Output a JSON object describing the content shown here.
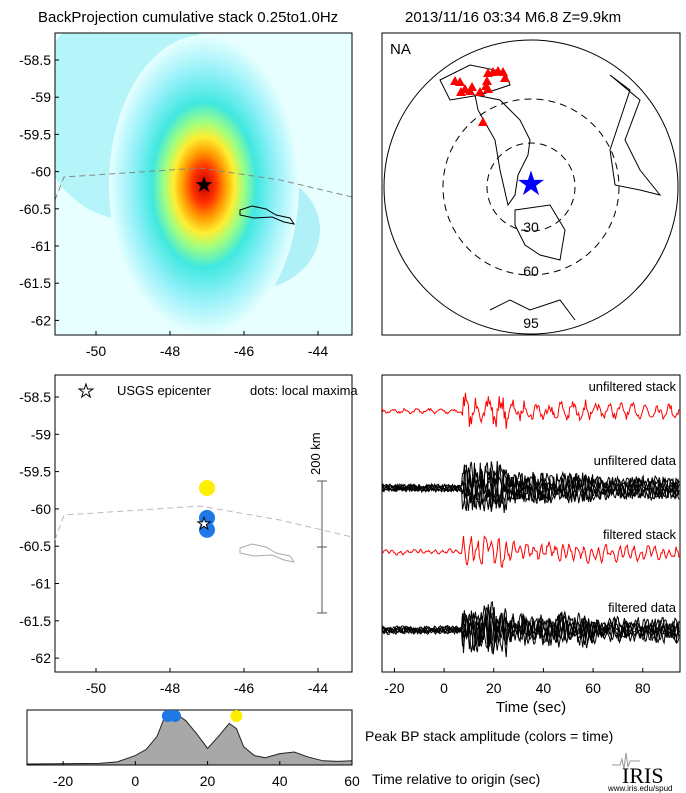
{
  "header": {
    "title": "BackProjection cumulative stack 0.25to1.0Hz",
    "event": "2013/11/16 03:34  M6.8  Z=9.9km"
  },
  "colors": {
    "stack": "#ff0000",
    "data": "#000000",
    "epicenter_map": "#0000ff",
    "stations": "#ff0000",
    "early": "#1e78e6",
    "late": "#ffee00",
    "area": "#a8a8a8"
  },
  "chart_data": [
    {
      "type": "heatmap",
      "name": "backprojection-map",
      "xticks": [
        "-50",
        "-48",
        "-46",
        "-44"
      ],
      "yticks": [
        "-58.5",
        "-59",
        "-59.5",
        "-60",
        "-60.5",
        "-61",
        "-61.5",
        "-62"
      ],
      "xlim": [
        -51.5,
        -43
      ],
      "ylim": [
        -62.2,
        -58.2
      ],
      "peak": {
        "lon": -47.0,
        "lat": -60.2
      },
      "epicenter": {
        "lon": -47.0,
        "lat": -60.2
      }
    },
    {
      "type": "map",
      "name": "station-map",
      "label": "NA",
      "rings": [
        "30",
        "60",
        "95"
      ]
    },
    {
      "type": "scatter",
      "name": "local-maxima",
      "legend_epicenter": "USGS epicenter",
      "legend_dots": "dots: local maxima",
      "scale_label": "200 km",
      "xticks": [
        "-50",
        "-48",
        "-46",
        "-44"
      ],
      "yticks": [
        "-58.5",
        "-59",
        "-59.5",
        "-60",
        "-60.5",
        "-61",
        "-61.5",
        "-62"
      ],
      "points": [
        {
          "lon": -47.0,
          "lat": -59.72,
          "time": 28,
          "color": "#ffee00"
        },
        {
          "lon": -47.0,
          "lat": -60.12,
          "time": 9,
          "color": "#1e78e6"
        },
        {
          "lon": -47.0,
          "lat": -60.28,
          "time": 11,
          "color": "#1e78e6"
        }
      ]
    },
    {
      "type": "line",
      "name": "waveforms",
      "traces": [
        "unfiltered stack",
        "unfiltered data",
        "filtered stack",
        "filtered data"
      ],
      "xticks": [
        "-20",
        "0",
        "20",
        "40",
        "60",
        "80"
      ],
      "xlim": [
        -25,
        95
      ],
      "xlabel": "Time (sec)"
    },
    {
      "type": "area",
      "name": "peak-amplitude",
      "title": "Peak BP stack amplitude (colors = time)",
      "xlabel": "Time relative to origin (sec)",
      "xticks": [
        "-20",
        "0",
        "20",
        "40",
        "60"
      ],
      "xlim": [
        -30,
        60
      ],
      "x": [
        -30,
        -10,
        -5,
        0,
        3,
        6,
        8,
        10,
        12,
        14,
        17,
        20,
        23,
        26,
        28,
        30,
        33,
        36,
        40,
        44,
        48,
        52,
        56,
        60
      ],
      "y": [
        0.02,
        0.03,
        0.06,
        0.18,
        0.3,
        0.55,
        0.9,
        0.97,
        0.95,
        0.85,
        0.6,
        0.32,
        0.55,
        0.8,
        0.7,
        0.35,
        0.18,
        0.14,
        0.22,
        0.25,
        0.15,
        0.08,
        0.07,
        0.08
      ],
      "dots": [
        {
          "time": 9,
          "color": "#1e78e6"
        },
        {
          "time": 11,
          "color": "#1e78e6"
        },
        {
          "time": 28,
          "color": "#ffee00"
        }
      ]
    }
  ],
  "logo": {
    "name": "IRIS",
    "url_text": "www.iris.edu/spud"
  }
}
